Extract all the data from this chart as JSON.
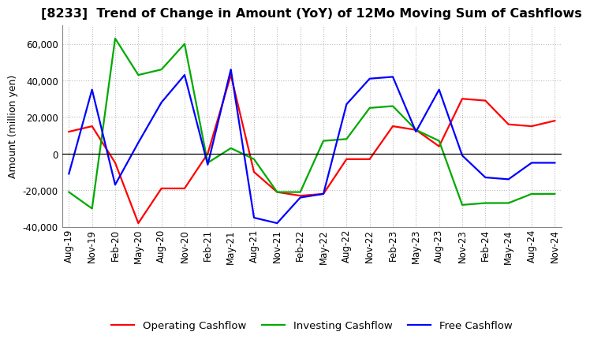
{
  "title": "[8233]  Trend of Change in Amount (YoY) of 12Mo Moving Sum of Cashflows",
  "ylabel": "Amount (million yen)",
  "x_labels": [
    "Aug-19",
    "Nov-19",
    "Feb-20",
    "May-20",
    "Aug-20",
    "Nov-20",
    "Feb-21",
    "May-21",
    "Aug-21",
    "Nov-21",
    "Feb-22",
    "May-22",
    "Aug-22",
    "Nov-22",
    "Feb-23",
    "May-23",
    "Aug-23",
    "Nov-23",
    "Feb-24",
    "May-24",
    "Aug-24",
    "Nov-24"
  ],
  "operating": [
    12000,
    15000,
    -5000,
    -38000,
    -19000,
    -19000,
    0,
    43000,
    -10000,
    -21000,
    -23000,
    -22000,
    -3000,
    -3000,
    15000,
    13000,
    4000,
    30000,
    29000,
    16000,
    15000,
    18000
  ],
  "investing": [
    -21000,
    -30000,
    63000,
    43000,
    46000,
    60000,
    -5000,
    3000,
    -3000,
    -21000,
    -21000,
    7000,
    8000,
    25000,
    26000,
    13000,
    7000,
    -28000,
    -27000,
    -27000,
    -22000,
    -22000
  ],
  "free": [
    -11000,
    35000,
    -17000,
    6000,
    28000,
    43000,
    -6000,
    46000,
    -35000,
    -38000,
    -24000,
    -22000,
    27000,
    41000,
    42000,
    12000,
    35000,
    -1000,
    -13000,
    -14000,
    -5000,
    -5000
  ],
  "ylim": [
    -40000,
    70000
  ],
  "yticks": [
    -40000,
    -20000,
    0,
    20000,
    40000,
    60000
  ],
  "operating_color": "#ff0000",
  "investing_color": "#00aa00",
  "free_color": "#0000ff",
  "bg_color": "#ffffff",
  "grid_color": "#bbbbbb",
  "title_fontsize": 11.5,
  "legend_fontsize": 9.5,
  "axis_fontsize": 8.5,
  "ylabel_fontsize": 9
}
